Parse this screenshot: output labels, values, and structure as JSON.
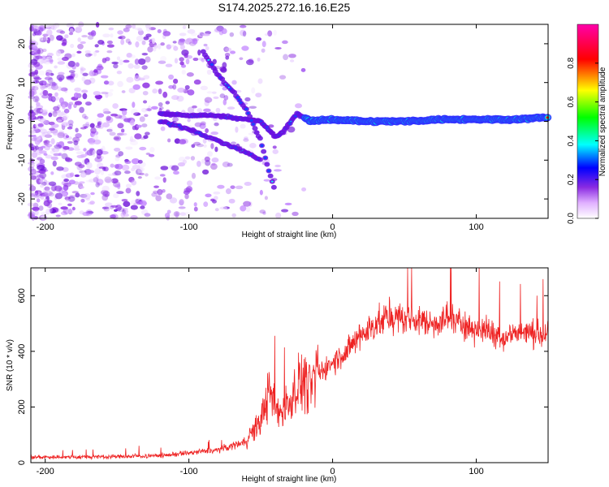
{
  "title": "S174.2025.272.16.16.E25",
  "chart_data": [
    {
      "type": "heatmap",
      "name": "spectrogram",
      "xlabel": "Height of straight line (km)",
      "ylabel": "Frequency (Hz)",
      "xlim": [
        -210,
        150
      ],
      "ylim": [
        -25,
        25
      ],
      "xticks": [
        -200,
        -100,
        0,
        100
      ],
      "yticks": [
        -20,
        -10,
        0,
        10,
        20
      ],
      "colorbar": {
        "label": "Normalized spectral amplitude",
        "range": [
          0,
          1
        ],
        "ticks": [
          0.0,
          0.2,
          0.4,
          0.6,
          0.8
        ],
        "colors": [
          "#ffffff",
          "#a020f0",
          "#0000ff",
          "#00ffff",
          "#00ff00",
          "#ffff00",
          "#ff0000",
          "#ff00ff"
        ]
      },
      "features": [
        {
          "name": "central line",
          "x": [
            -120,
            -100,
            -80,
            -60,
            -50,
            -40,
            -35,
            -25,
            -15,
            0,
            25,
            50,
            75,
            100,
            125,
            150
          ],
          "y": [
            2,
            1.5,
            1.5,
            0.5,
            0,
            -4,
            -3,
            2,
            0,
            0.5,
            0,
            0,
            0.5,
            0.5,
            0.5,
            1
          ]
        },
        {
          "name": "upper chirp",
          "x": [
            -90,
            -80,
            -70,
            -60,
            -50,
            -45,
            -40
          ],
          "y": [
            18,
            12,
            8,
            3,
            -5,
            -12,
            -18
          ]
        },
        {
          "name": "lower branch",
          "x": [
            -120,
            -100,
            -80,
            -60,
            -50
          ],
          "y": [
            0,
            -2,
            -5,
            -8,
            -10
          ]
        }
      ]
    },
    {
      "type": "line",
      "name": "snr",
      "xlabel": "Height of straight line (km)",
      "ylabel": "SNR (10 * v/v)",
      "xlim": [
        -210,
        150
      ],
      "ylim": [
        0,
        700
      ],
      "xticks": [
        -200,
        -100,
        0,
        100
      ],
      "yticks": [
        0,
        200,
        400,
        600
      ],
      "color": "#ee2222",
      "x": [
        -210,
        -180,
        -150,
        -120,
        -100,
        -80,
        -70,
        -60,
        -50,
        -45,
        -40,
        -35,
        -30,
        -25,
        -20,
        -15,
        -10,
        0,
        10,
        20,
        30,
        40,
        50,
        60,
        70,
        80,
        90,
        100,
        110,
        120,
        130,
        140,
        150
      ],
      "y": [
        20,
        20,
        22,
        25,
        35,
        45,
        60,
        80,
        150,
        250,
        200,
        180,
        220,
        280,
        300,
        270,
        320,
        360,
        400,
        460,
        500,
        520,
        520,
        510,
        500,
        520,
        500,
        480,
        470,
        450,
        470,
        460,
        460
      ]
    }
  ]
}
